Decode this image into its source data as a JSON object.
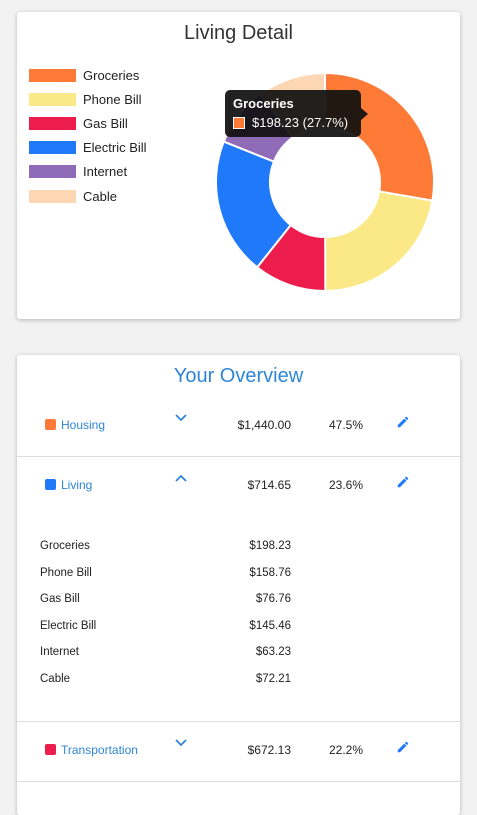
{
  "detail": {
    "title": "Living Detail",
    "tooltip": {
      "title": "Groceries",
      "value": "$198.23 (27.7%)",
      "color": "#fd7b36"
    }
  },
  "chart_data": {
    "type": "pie",
    "title": "Living Detail",
    "donut": true,
    "labels": [
      "Groceries",
      "Phone Bill",
      "Gas Bill",
      "Electric Bill",
      "Internet",
      "Cable"
    ],
    "values": [
      198.23,
      158.76,
      76.76,
      145.46,
      63.23,
      72.21
    ],
    "colors": [
      "#fd7b36",
      "#fbe886",
      "#ec1c4c",
      "#1f79f8",
      "#906bb7",
      "#fdd7b4"
    ],
    "legend_position": "left"
  },
  "overview": {
    "title": "Your Overview",
    "categories": [
      {
        "label": "Housing",
        "amount": "$1,440.00",
        "percent": "47.5%",
        "color": "#fd7b36",
        "expanded": false
      },
      {
        "label": "Living",
        "amount": "$714.65",
        "percent": "23.6%",
        "color": "#1f79f8",
        "expanded": true
      },
      {
        "label": "Transportation",
        "amount": "$672.13",
        "percent": "22.2%",
        "color": "#ec1c4c",
        "expanded": false
      }
    ],
    "living_items": [
      {
        "label": "Groceries",
        "amount": "$198.23"
      },
      {
        "label": "Phone Bill",
        "amount": "$158.76"
      },
      {
        "label": "Gas Bill",
        "amount": "$76.76"
      },
      {
        "label": "Electric Bill",
        "amount": "$145.46"
      },
      {
        "label": "Internet",
        "amount": "$63.23"
      },
      {
        "label": "Cable",
        "amount": "$72.21"
      }
    ],
    "icons": {
      "chevron_down": "chevron-down-icon",
      "chevron_up": "chevron-up-icon",
      "edit": "pencil-icon"
    },
    "accent_color": "#2f86d6"
  }
}
